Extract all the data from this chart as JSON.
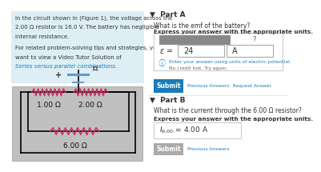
{
  "bg_color": "#ffffff",
  "left_panel_bg": "#ddeef5",
  "circuit_bg": "#c0c0c0",
  "problem_text_line1": "In the circuit shown in (Figure 1), the voltage across the",
  "problem_text_line2": "2.00 Ω resistor is 16.0 V. The battery has negligible",
  "problem_text_line3": "internal resistance.",
  "problem_text_line4": "For related problem-solving tips and strategies, you may",
  "problem_text_line5": "want to view a Video Tutor Solution of",
  "link_text": "Series versus parallel combinations.",
  "resistor_color": "#cc3366",
  "circuit_wire_color": "#000000",
  "battery_color": "#6699cc",
  "part_a_question": "What is the emf of the battery?",
  "part_a_instruction": "Express your answer with the appropriate units.",
  "part_a_answer_value": "24",
  "part_a_answer_unit": "A",
  "part_a_hint": "Enter your answer using units of electric potential.",
  "part_a_hint2": "No credit lost. Try again.",
  "submit_btn_color": "#1a7bb9",
  "part_b_question": "What is the current through the 6.00 Ω resistor?",
  "part_b_instruction": "Express your answer with the appropriate units.",
  "resistor_labels": [
    "1.00 Ω",
    "2.00 Ω",
    "6.00 Ω"
  ]
}
